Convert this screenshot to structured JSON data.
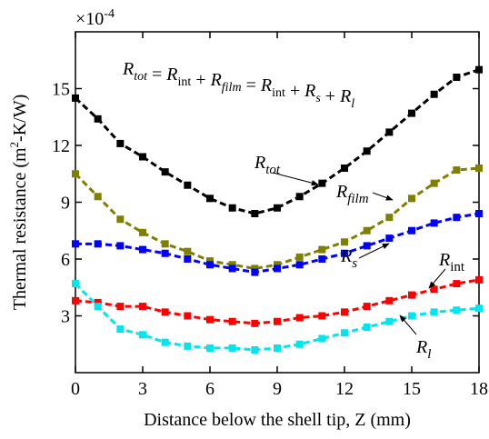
{
  "chart_data": {
    "type": "line",
    "multiplier": {
      "text": "×10",
      "sup": "-4"
    },
    "equation": [
      {
        "text": "R",
        "sub": "tot"
      },
      {
        "text": " = "
      },
      {
        "text": "R",
        "sub": "int"
      },
      {
        "text": " + "
      },
      {
        "text": "R",
        "sub": "film"
      },
      {
        "text": " = "
      },
      {
        "text": "R",
        "sub": "int"
      },
      {
        "text": " + "
      },
      {
        "text": "R",
        "sub": "s"
      },
      {
        "text": " + "
      },
      {
        "text": "R",
        "sub": "l"
      }
    ],
    "x_label": "Distance below the shell tip, Z (mm)",
    "y_label": {
      "before": "Thermal resistance (m",
      "sup": "2",
      "after": "-K/W)"
    },
    "x": [
      0,
      1,
      2,
      3,
      4,
      5,
      6,
      7,
      8,
      9,
      10,
      11,
      12,
      13,
      14,
      15,
      16,
      17,
      18
    ],
    "xlim": [
      0,
      18
    ],
    "xticks": [
      0,
      3,
      6,
      9,
      12,
      15,
      18
    ],
    "ylim": [
      0,
      18
    ],
    "yticks": [
      3,
      6,
      9,
      12,
      15
    ],
    "series": [
      {
        "name": "R",
        "subscript": "tot",
        "color": "#000000",
        "values": [
          14.5,
          13.4,
          12.1,
          11.4,
          10.6,
          9.9,
          9.2,
          8.7,
          8.4,
          8.7,
          9.3,
          10.0,
          10.8,
          11.7,
          12.7,
          13.7,
          14.7,
          15.6,
          16.0
        ]
      },
      {
        "name": "R",
        "subscript": "film",
        "color": "#808000",
        "values": [
          10.5,
          9.3,
          8.1,
          7.4,
          6.8,
          6.4,
          5.9,
          5.7,
          5.5,
          5.7,
          6.1,
          6.5,
          6.9,
          7.5,
          8.2,
          9.2,
          10.0,
          10.7,
          10.8
        ]
      },
      {
        "name": "R",
        "subscript": "s",
        "color": "#0000ff",
        "values": [
          6.8,
          6.8,
          6.7,
          6.5,
          6.3,
          6.0,
          5.7,
          5.5,
          5.3,
          5.5,
          5.7,
          6.0,
          6.3,
          6.7,
          7.1,
          7.5,
          7.9,
          8.2,
          8.4
        ]
      },
      {
        "name": "R",
        "subscript": "int",
        "color": "#ff0000",
        "values": [
          3.8,
          3.7,
          3.5,
          3.5,
          3.2,
          3.0,
          2.8,
          2.7,
          2.6,
          2.7,
          2.9,
          3.0,
          3.2,
          3.5,
          3.8,
          4.1,
          4.4,
          4.7,
          4.9
        ]
      },
      {
        "name": "R",
        "subscript": "l",
        "color": "#00e5ee",
        "values": [
          4.7,
          3.5,
          2.3,
          2.0,
          1.6,
          1.4,
          1.3,
          1.3,
          1.2,
          1.3,
          1.5,
          1.8,
          2.1,
          2.4,
          2.7,
          3.0,
          3.2,
          3.3,
          3.4
        ]
      }
    ]
  }
}
